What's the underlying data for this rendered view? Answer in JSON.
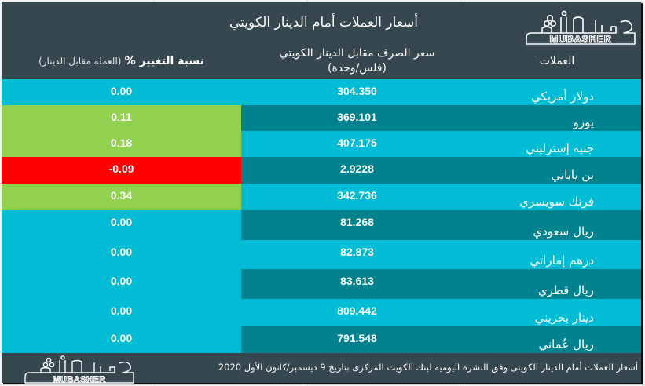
{
  "header": {
    "title": "أسعار العملات أمام الدينار الكويتي",
    "logo_text": "MUBASHER",
    "logo_name": "mubasher-logo"
  },
  "columns": {
    "currency": "العملات",
    "rate_line1": "سعر الصرف مقابل الدينار الكويتي",
    "rate_line2": "(فلس/وحدة)",
    "change_main": "نسبة التغيير %",
    "change_sub": "(العملة مقابل الدينار)"
  },
  "colors": {
    "panel": "#37474f",
    "row_light": "#00bcd4",
    "row_dark": "#00838f",
    "positive": "#92d050",
    "negative": "#ff0000",
    "neutral": "#00bcd4"
  },
  "rows": [
    {
      "currency": "دولار أمريكي",
      "rate": "304.350",
      "change": "0.00",
      "trend": "neutral"
    },
    {
      "currency": "يورو",
      "rate": "369.101",
      "change": "0.11",
      "trend": "positive"
    },
    {
      "currency": "جنيه إسترليني",
      "rate": "407.175",
      "change": "0.18",
      "trend": "positive"
    },
    {
      "currency": "ين ياباني",
      "rate": "2.9228",
      "change": "-0.09",
      "trend": "negative"
    },
    {
      "currency": "فرنك سويسري",
      "rate": "342.736",
      "change": "0.34",
      "trend": "positive"
    },
    {
      "currency": "ريال سعودي",
      "rate": "81.268",
      "change": "0.00",
      "trend": "neutral"
    },
    {
      "currency": "درهم إماراتي",
      "rate": "82.873",
      "change": "0.00",
      "trend": "neutral"
    },
    {
      "currency": "ريال قطري",
      "rate": "83.613",
      "change": "0.00",
      "trend": "neutral"
    },
    {
      "currency": "دينار بحريني",
      "rate": "809.442",
      "change": "0.00",
      "trend": "neutral"
    },
    {
      "currency": "ريال عُماني",
      "rate": "791.548",
      "change": "0.00",
      "trend": "neutral"
    }
  ],
  "footer": {
    "note": "أسعار  العملات أمام الدينار الكويتى وفق النشرة اليومية لبنك الكويت المركزى بتاريخ 9 ديسمبر/كانون الأول 2020",
    "logo_text": "MUBASHER"
  }
}
